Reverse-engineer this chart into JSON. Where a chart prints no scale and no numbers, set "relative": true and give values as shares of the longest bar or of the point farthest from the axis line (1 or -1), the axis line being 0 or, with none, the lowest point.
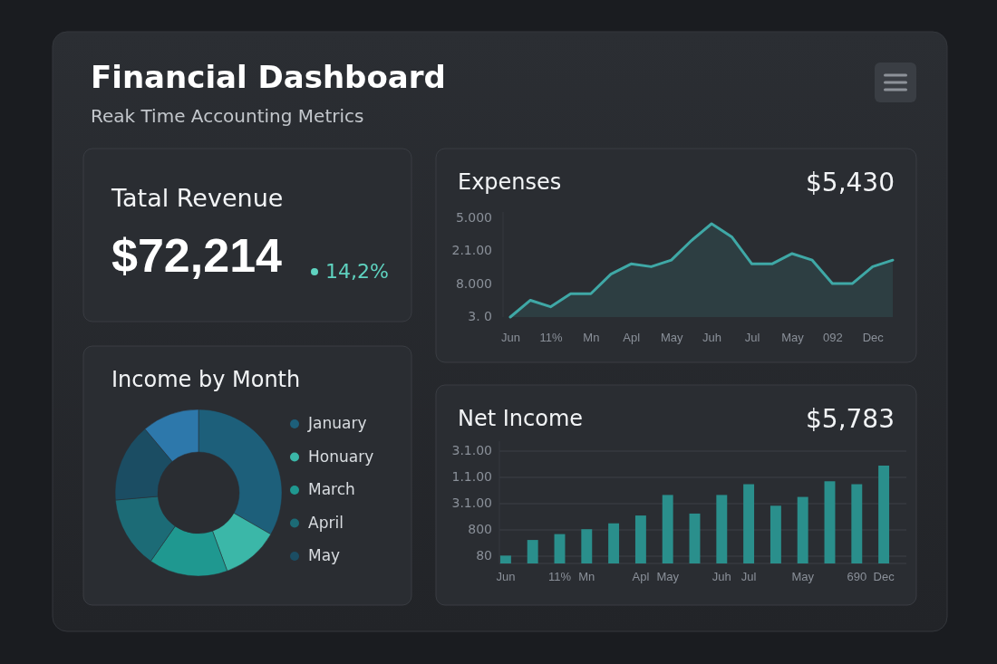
{
  "chart_data": [
    {
      "type": "other",
      "title": "Financial Dashboard",
      "subtitle": "Reak Time Accounting Metrics"
    },
    {
      "type": "other",
      "title": "Tatal Revenue",
      "annotations": [
        "$72,214",
        "14,2%"
      ]
    },
    {
      "type": "area",
      "title": "Expenses",
      "annotations": [
        "$5,430",
        "3. 0",
        "8.000",
        "2.1.00",
        "5.000"
      ],
      "categories": [
        "Jun",
        null,
        "11%",
        null,
        "Mn",
        null,
        "Apl",
        null,
        "May",
        null,
        "Juh",
        null,
        "Jul",
        null,
        "May",
        null,
        "092",
        null,
        "Dec",
        null
      ],
      "series": [
        {
          "color": "#3fa8a6",
          "values": [
            0,
            0.18,
            0.11,
            0.25,
            0.25,
            0.46,
            0.57,
            0.54,
            0.61,
            0.82,
            1,
            0.86,
            0.57,
            0.57,
            0.68,
            0.61,
            0.36,
            0.36,
            0.54,
            0.61
          ]
        }
      ],
      "relative": true
    },
    {
      "type": "donut",
      "title": "Income by Month",
      "categories": [
        "January",
        "Honuary",
        "March",
        "April",
        "May",
        null
      ],
      "values": [
        33.3,
        11.1,
        15.3,
        13.9,
        15.3,
        11.1
      ],
      "colors": [
        "#1d5f7a",
        "#3bb7a8",
        "#1f9890",
        "#1c6b76",
        "#1b4d63",
        "#2d78ab"
      ],
      "legend": "right"
    },
    {
      "type": "bar",
      "title": "Net Income",
      "annotations": [
        "$5,783",
        "80",
        "800",
        "3.1.00",
        "1.1.00",
        "3.1.00"
      ],
      "categories": [
        "Jun",
        null,
        "11%",
        "Mn",
        null,
        "Apl",
        "May",
        null,
        "Juh",
        "Jul",
        null,
        "May",
        null,
        "690",
        "Dec"
      ],
      "series": [
        {
          "color": "#2a8f8c",
          "values": [
            0.08,
            0.24,
            0.3,
            0.35,
            0.41,
            0.49,
            0.7,
            0.51,
            0.7,
            0.81,
            0.59,
            0.68,
            0.84,
            0.81,
            1
          ]
        }
      ],
      "relative": true
    }
  ]
}
